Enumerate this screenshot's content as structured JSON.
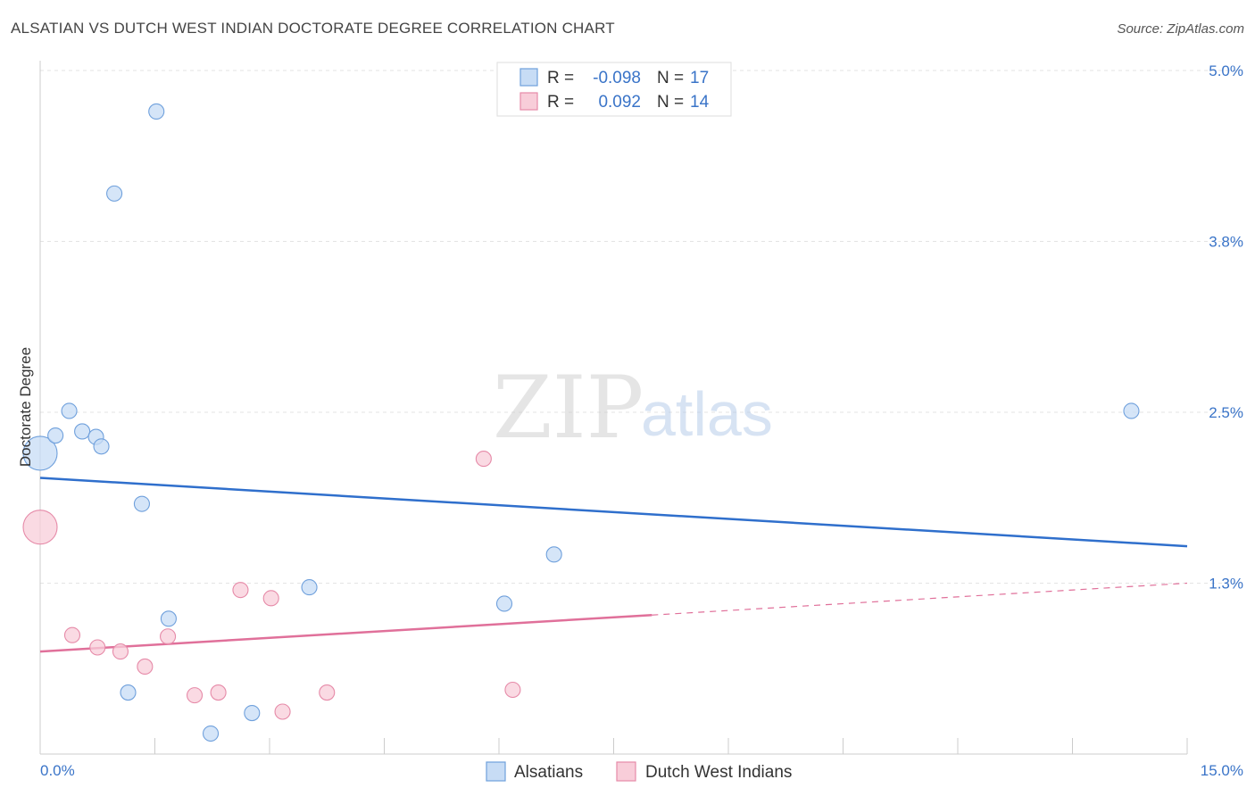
{
  "title": "ALSATIAN VS DUTCH WEST INDIAN DOCTORATE DEGREE CORRELATION CHART",
  "source": "Source: ZipAtlas.com",
  "watermark": {
    "zip": "ZIP",
    "atlas": "atlas"
  },
  "chart_data": {
    "type": "scatter",
    "ylabel": "Doctorate Degree",
    "xlim": [
      0,
      15
    ],
    "ylim": [
      0,
      5.0
    ],
    "x_tick_labels": [
      "0.0%",
      "15.0%"
    ],
    "y_tick_values": [
      1.25,
      2.5,
      3.75,
      5.0
    ],
    "y_tick_labels": [
      "1.3%",
      "2.5%",
      "3.8%",
      "5.0%"
    ],
    "grid": true,
    "legend_position": "top-center",
    "series": [
      {
        "name": "Alsatians",
        "color": "#6fa0dc",
        "fill": "#c7dcf5",
        "r_label": "R =",
        "r_value": "-0.098",
        "n_label": "N =",
        "n_value": "17",
        "trend": {
          "x0": 0,
          "y0": 2.02,
          "x1": 15,
          "y1": 1.52,
          "dashed_from": null
        },
        "points": [
          {
            "x": 0.0,
            "y": 2.2,
            "size": "large"
          },
          {
            "x": 0.2,
            "y": 2.33
          },
          {
            "x": 0.38,
            "y": 2.51
          },
          {
            "x": 0.55,
            "y": 2.36
          },
          {
            "x": 0.73,
            "y": 2.32
          },
          {
            "x": 0.8,
            "y": 2.25
          },
          {
            "x": 0.97,
            "y": 4.1
          },
          {
            "x": 1.15,
            "y": 0.45
          },
          {
            "x": 1.33,
            "y": 1.83
          },
          {
            "x": 1.52,
            "y": 4.7
          },
          {
            "x": 1.68,
            "y": 0.99
          },
          {
            "x": 2.23,
            "y": 0.15
          },
          {
            "x": 2.77,
            "y": 0.3
          },
          {
            "x": 3.52,
            "y": 1.22
          },
          {
            "x": 6.07,
            "y": 1.1
          },
          {
            "x": 6.72,
            "y": 1.46
          },
          {
            "x": 14.27,
            "y": 2.51
          }
        ]
      },
      {
        "name": "Dutch West Indians",
        "color": "#e68aa8",
        "fill": "#f8cdd9",
        "r_label": "R =",
        "r_value": "0.092",
        "n_label": "N =",
        "n_value": "14",
        "trend": {
          "x0": 0,
          "y0": 0.75,
          "x1": 15,
          "y1": 1.25,
          "dashed_from": 8.0
        },
        "points": [
          {
            "x": 0.0,
            "y": 1.66,
            "size": "large"
          },
          {
            "x": 0.42,
            "y": 0.87
          },
          {
            "x": 0.75,
            "y": 0.78
          },
          {
            "x": 1.05,
            "y": 0.75
          },
          {
            "x": 1.37,
            "y": 0.64
          },
          {
            "x": 1.67,
            "y": 0.86
          },
          {
            "x": 2.02,
            "y": 0.43
          },
          {
            "x": 2.33,
            "y": 0.45
          },
          {
            "x": 2.62,
            "y": 1.2
          },
          {
            "x": 3.02,
            "y": 1.14
          },
          {
            "x": 3.17,
            "y": 0.31
          },
          {
            "x": 3.75,
            "y": 0.45
          },
          {
            "x": 5.8,
            "y": 2.16
          },
          {
            "x": 6.18,
            "y": 0.47
          }
        ]
      }
    ]
  }
}
